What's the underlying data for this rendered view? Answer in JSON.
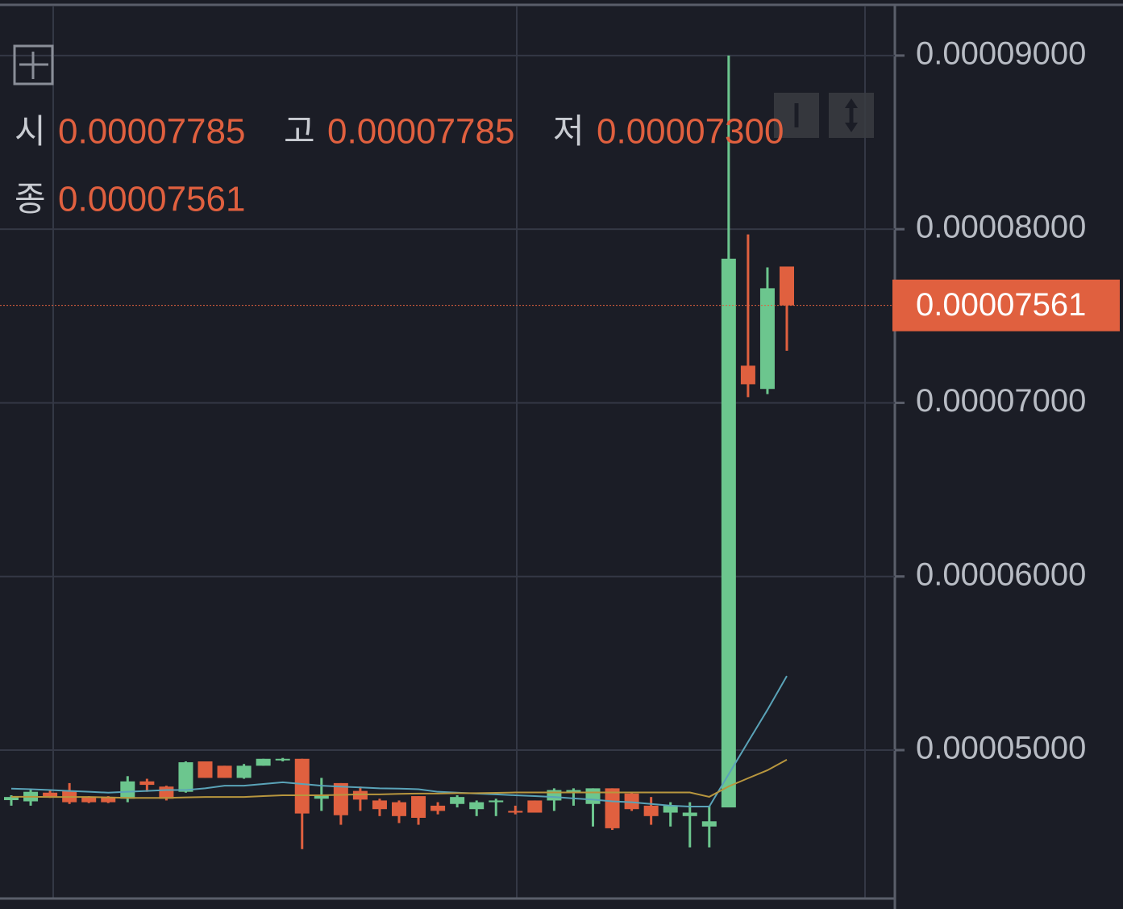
{
  "chart_data": {
    "type": "candlestick",
    "ohlc_legend": [
      {
        "name": "시",
        "value": 7.785e-05,
        "label": "0.00007785"
      },
      {
        "name": "고",
        "value": 7.785e-05,
        "label": "0.00007785"
      },
      {
        "name": "저",
        "value": 7.3e-05,
        "label": "0.00007300"
      },
      {
        "name": "종",
        "value": 7.561e-05,
        "label": "0.00007561"
      }
    ],
    "last_price": {
      "value": 7.561e-05,
      "label": "0.00007561",
      "color": "#e0603f"
    },
    "up_color": "#6cc68e",
    "down_color": "#e0603f",
    "open": [
      4.712e-05,
      4.705e-05,
      4.755e-05,
      4.765e-05,
      4.73e-05,
      4.73e-05,
      4.72e-05,
      4.82e-05,
      4.79e-05,
      4.76e-05,
      4.935e-05,
      4.91e-05,
      4.84e-05,
      4.91e-05,
      4.945e-05,
      4.95e-05,
      4.72e-05,
      4.81e-05,
      4.765e-05,
      4.71e-05,
      4.7e-05,
      4.735e-05,
      4.68e-05,
      4.69e-05,
      4.66e-05,
      4.7e-05,
      4.65e-05,
      4.71e-05,
      4.71e-05,
      4.76e-05,
      4.69e-05,
      4.78e-05,
      4.75e-05,
      4.68e-05,
      4.64e-05,
      4.62e-05,
      4.56e-05,
      4.67e-05,
      7.214e-05,
      7.08e-05,
      7.785e-05
    ],
    "high": [
      4.74e-05,
      4.77e-05,
      4.77e-05,
      4.81e-05,
      4.735e-05,
      4.735e-05,
      4.85e-05,
      4.835e-05,
      4.795e-05,
      4.935e-05,
      4.935e-05,
      4.91e-05,
      4.92e-05,
      4.95e-05,
      4.955e-05,
      4.95e-05,
      4.84e-05,
      4.81e-05,
      4.79e-05,
      4.72e-05,
      4.71e-05,
      4.735e-05,
      4.7e-05,
      4.74e-05,
      4.71e-05,
      4.72e-05,
      4.68e-05,
      4.71e-05,
      4.78e-05,
      4.78e-05,
      4.78e-05,
      4.78e-05,
      4.76e-05,
      4.73e-05,
      4.7e-05,
      4.7e-05,
      4.68e-05,
      9e-05,
      7.97e-05,
      7.78e-05,
      7.785e-05
    ],
    "low": [
      4.68e-05,
      4.68e-05,
      4.725e-05,
      4.69e-05,
      4.695e-05,
      4.695e-05,
      4.7e-05,
      4.76e-05,
      4.71e-05,
      4.755e-05,
      4.84e-05,
      4.84e-05,
      4.835e-05,
      4.91e-05,
      4.935e-05,
      4.43e-05,
      4.65e-05,
      4.57e-05,
      4.65e-05,
      4.62e-05,
      4.58e-05,
      4.57e-05,
      4.63e-05,
      4.67e-05,
      4.62e-05,
      4.62e-05,
      4.63e-05,
      4.64e-05,
      4.65e-05,
      4.68e-05,
      4.56e-05,
      4.54e-05,
      4.65e-05,
      4.57e-05,
      4.56e-05,
      4.44e-05,
      4.44e-05,
      4.67e-05,
      7.033e-05,
      7.05e-05,
      7.3e-05
    ],
    "close": [
      4.73e-05,
      4.76e-05,
      4.73e-05,
      4.7e-05,
      4.7e-05,
      4.7e-05,
      4.82e-05,
      4.8e-05,
      4.72e-05,
      4.93e-05,
      4.84e-05,
      4.84e-05,
      4.91e-05,
      4.95e-05,
      4.95e-05,
      4.635e-05,
      4.74e-05,
      4.625e-05,
      4.715e-05,
      4.66e-05,
      4.62e-05,
      4.61e-05,
      4.65e-05,
      4.73e-05,
      4.7e-05,
      4.71e-05,
      4.64e-05,
      4.64e-05,
      4.77e-05,
      4.77e-05,
      4.78e-05,
      4.55e-05,
      4.66e-05,
      4.62e-05,
      4.68e-05,
      4.64e-05,
      4.59e-05,
      7.83e-05,
      7.107e-05,
      7.66e-05,
      7.561e-05
    ],
    "series": [
      {
        "color": "#5aa3b8",
        "values": [
          4.778e-05,
          4.775e-05,
          4.77e-05,
          4.765e-05,
          4.76e-05,
          4.755e-05,
          4.76e-05,
          4.765e-05,
          4.77e-05,
          4.77e-05,
          4.78e-05,
          4.795e-05,
          4.795e-05,
          4.805e-05,
          4.815e-05,
          4.805e-05,
          4.795e-05,
          4.79e-05,
          4.785e-05,
          4.78e-05,
          4.778e-05,
          4.775e-05,
          4.76e-05,
          4.755e-05,
          4.75e-05,
          4.745e-05,
          4.74e-05,
          4.735e-05,
          4.73e-05,
          4.722e-05,
          4.715e-05,
          4.705e-05,
          4.7e-05,
          4.69e-05,
          4.68e-05,
          4.675e-05,
          4.675e-05,
          4.861e-05,
          5.047e-05,
          5.232e-05,
          5.427e-05
        ]
      },
      {
        "color": "#b8963e",
        "values": [
          4.731e-05,
          4.731e-05,
          4.73e-05,
          4.73e-05,
          4.73e-05,
          4.728e-05,
          4.725e-05,
          4.725e-05,
          4.725e-05,
          4.728e-05,
          4.73e-05,
          4.73e-05,
          4.73e-05,
          4.735e-05,
          4.74e-05,
          4.74e-05,
          4.74e-05,
          4.742e-05,
          4.745e-05,
          4.745e-05,
          4.748e-05,
          4.75e-05,
          4.75e-05,
          4.752e-05,
          4.752e-05,
          4.754e-05,
          4.756e-05,
          4.756e-05,
          4.756e-05,
          4.756e-05,
          4.756e-05,
          4.756e-05,
          4.756e-05,
          4.756e-05,
          4.756e-05,
          4.756e-05,
          4.731e-05,
          4.791e-05,
          4.838e-05,
          4.884e-05,
          4.945e-05
        ]
      }
    ],
    "ylim": [
      4.15e-05,
      9.32e-05
    ],
    "yticks": [
      {
        "value": 5e-05,
        "label": "0.00005000"
      },
      {
        "value": 6e-05,
        "label": "0.00006000"
      },
      {
        "value": 7e-05,
        "label": "0.00007000"
      },
      {
        "value": 8e-05,
        "label": "0.00008000"
      },
      {
        "value": 9e-05,
        "label": "0.00009000"
      }
    ],
    "grid": true
  }
}
